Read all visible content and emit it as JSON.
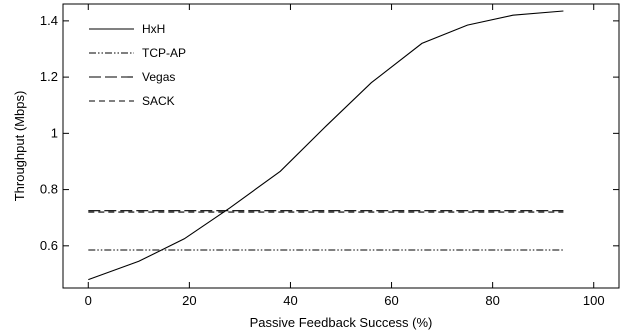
{
  "chart_data": {
    "type": "line",
    "title": "",
    "xlabel": "Passive Feedback Success (%)",
    "ylabel": "Throughput (Mbps)",
    "xlim": [
      -5,
      105
    ],
    "ylim": [
      0.45,
      1.46
    ],
    "xticks": [
      0,
      20,
      40,
      60,
      80,
      100
    ],
    "yticks": [
      0.6,
      0.8,
      1,
      1.2,
      1.4
    ],
    "xtick_labels": [
      "0",
      "20",
      "40",
      "60",
      "80",
      "100"
    ],
    "ytick_labels": [
      "0.6",
      "0.8",
      "1",
      "1.2",
      "1.4"
    ],
    "grid": false,
    "legend_position": "top-left",
    "series": [
      {
        "name": "HxH",
        "style": "solid",
        "x": [
          0,
          10,
          19,
          28,
          38,
          47,
          56,
          66,
          75,
          84,
          94
        ],
        "y": [
          0.48,
          0.545,
          0.625,
          0.735,
          0.865,
          1.025,
          1.18,
          1.32,
          1.385,
          1.42,
          1.435
        ]
      },
      {
        "name": "TCP-AP",
        "style": "dash-dot-dot",
        "x": [
          0,
          94
        ],
        "y": [
          0.585,
          0.585
        ]
      },
      {
        "name": "Vegas",
        "style": "long-dash",
        "x": [
          0,
          94
        ],
        "y": [
          0.725,
          0.725
        ]
      },
      {
        "name": "SACK",
        "style": "short-dash",
        "x": [
          0,
          94
        ],
        "y": [
          0.72,
          0.72
        ]
      }
    ]
  }
}
